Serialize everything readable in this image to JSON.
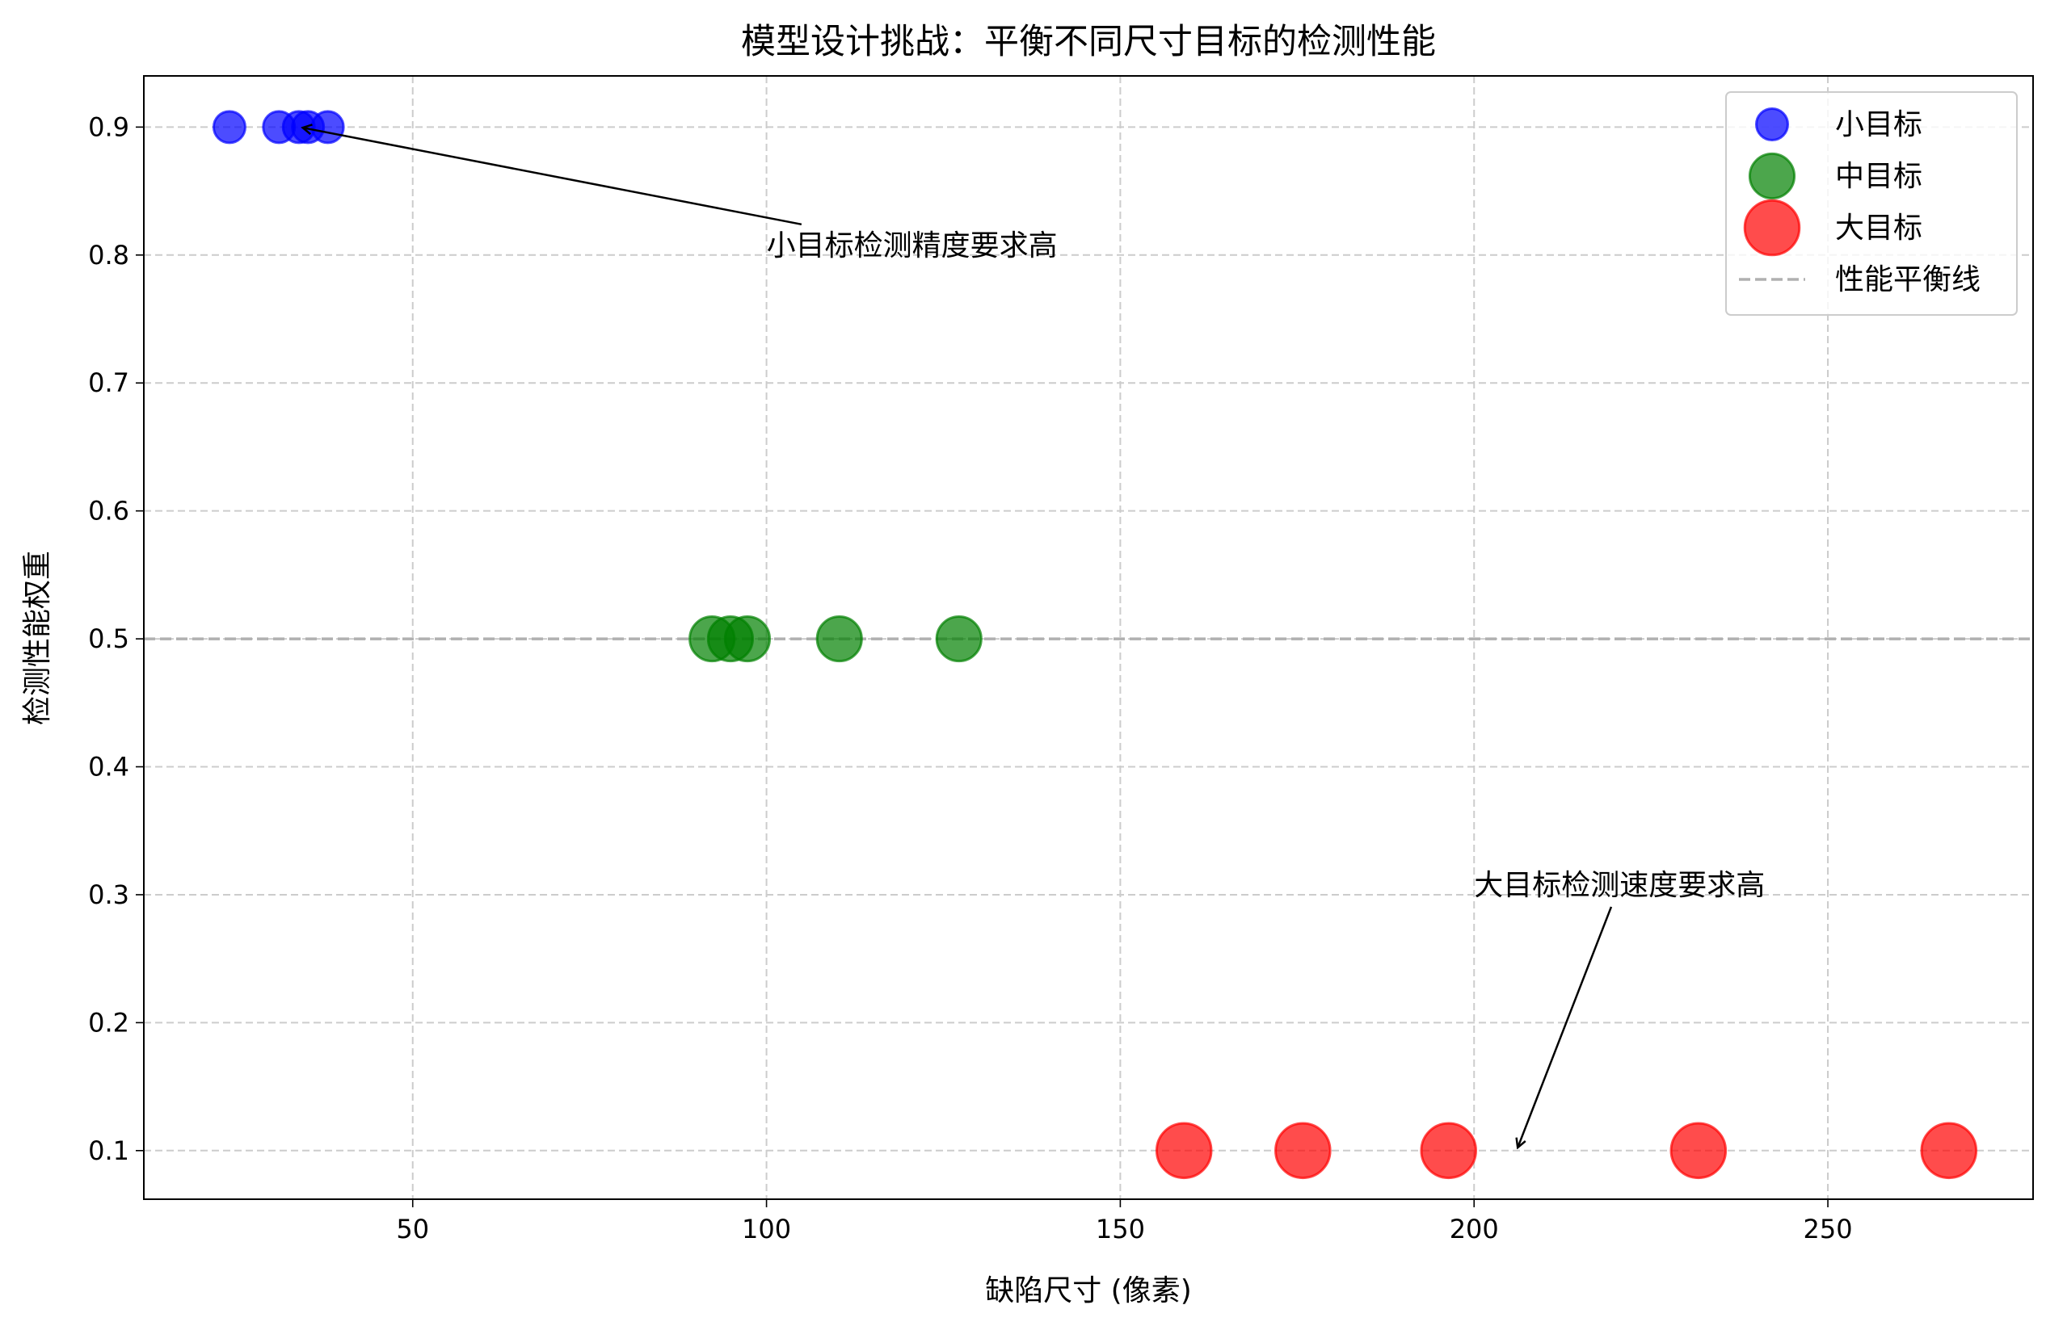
{
  "chart_data": {
    "type": "scatter",
    "title": "模型设计挑战：平衡不同尺寸目标的检测性能",
    "xlabel": "缺陷尺寸 (像素)",
    "ylabel": "检测性能权重",
    "xlim": [
      12,
      279
    ],
    "ylim": [
      0.062,
      0.94
    ],
    "xticks": [
      50,
      100,
      150,
      200,
      250
    ],
    "yticks": [
      0.1,
      0.2,
      0.3,
      0.4,
      0.5,
      0.6,
      0.7,
      0.8,
      0.9
    ],
    "grid": true,
    "legend": "upper right",
    "series": [
      {
        "name": "小目标",
        "color": "blue",
        "size": 100,
        "x": [
          24.1,
          31.1,
          33.9,
          35.2,
          38.0
        ],
        "values": [
          0.9,
          0.9,
          0.9,
          0.9,
          0.9
        ]
      },
      {
        "name": "中目标",
        "color": "green",
        "size": 200,
        "x": [
          92.3,
          94.9,
          97.3,
          110.3,
          127.2
        ],
        "values": [
          0.5,
          0.5,
          0.5,
          0.5,
          0.5
        ]
      },
      {
        "name": "大目标",
        "color": "red",
        "size": 300,
        "x": [
          159.0,
          175.8,
          196.4,
          231.7,
          267.1
        ],
        "values": [
          0.1,
          0.1,
          0.1,
          0.1,
          0.1
        ]
      }
    ],
    "hlines": [
      {
        "name": "性能平衡线",
        "value": 0.5,
        "color": "#b0b0b0"
      }
    ],
    "annotations": [
      {
        "text": "小目标检测精度要求高",
        "x": 34,
        "y": 0.9,
        "text_x": 100,
        "text_y": 0.8
      },
      {
        "text": "大目标检测速度要求高",
        "x": 206,
        "y": 0.1,
        "text_x": 200,
        "text_y": 0.3
      }
    ]
  }
}
